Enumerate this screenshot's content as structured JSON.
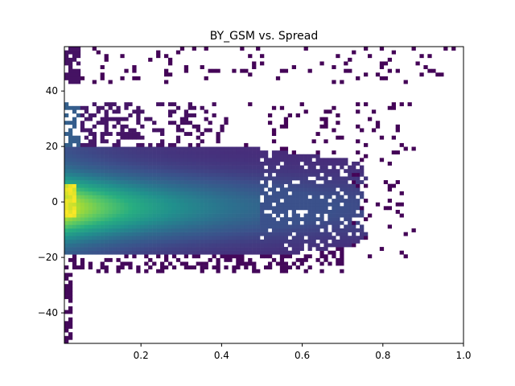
{
  "chart_data": {
    "type": "heatmap",
    "title": "BY_GSM vs. Spread",
    "xlabel": "",
    "ylabel": "",
    "xlim": [
      0.01,
      1.0
    ],
    "ylim": [
      -51,
      56
    ],
    "x_ticks": [
      0.2,
      0.4,
      0.6,
      0.8,
      1.0
    ],
    "x_tick_labels": [
      "0.2",
      "0.4",
      "0.6",
      "0.8",
      "1.0"
    ],
    "y_ticks": [
      -40,
      -20,
      0,
      20,
      40
    ],
    "y_tick_labels": [
      "−40",
      "−20",
      "0",
      "20",
      "40"
    ],
    "colormap": "viridis",
    "grid": false,
    "colors": {
      "low": "#440154",
      "mid": "#21918c",
      "high": "#fde725"
    },
    "density_description": {
      "core_center_y": -2,
      "core_x_range": [
        0.01,
        0.45
      ],
      "max_density_at": [
        0.02,
        -1
      ],
      "dense_band_y_range": [
        -18,
        20
      ],
      "sparse_upper_cluster_y_range": [
        42,
        56
      ],
      "outer_extent_x": 0.94
    }
  }
}
